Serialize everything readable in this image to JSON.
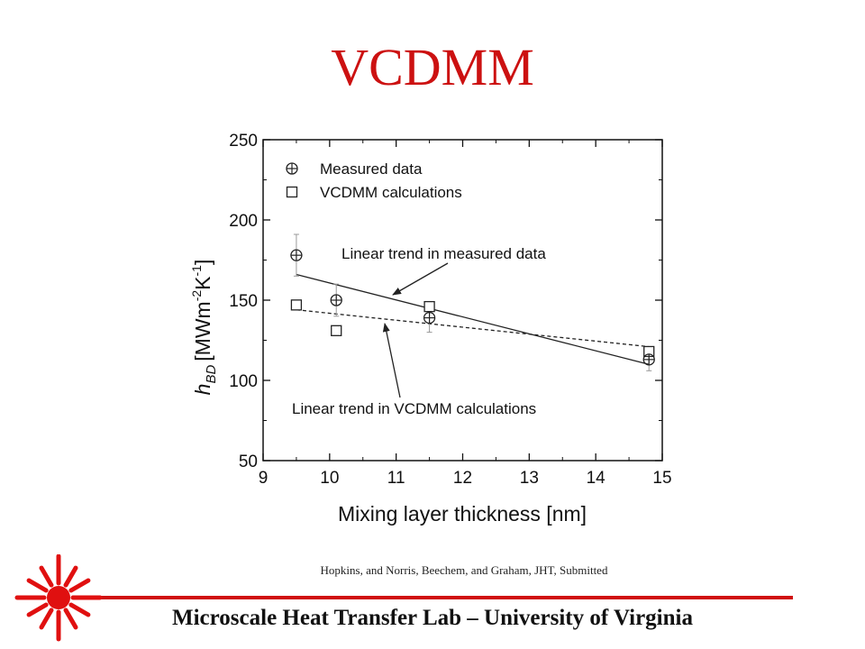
{
  "slide": {
    "title": "VCDMM",
    "citation": "Hopkins, and Norris, Beechem, and Graham, JHT,  Submitted",
    "footer": "Microscale Heat Transfer Lab – University of Virginia",
    "accent_color": "#cc1111",
    "logo": "starburst-laser-logo"
  },
  "chart_data": {
    "type": "scatter",
    "xlabel": "Mixing layer thickness [nm]",
    "ylabel": {
      "symbol": "h",
      "sub": "BD",
      "unit_main": "[MWm",
      "exp1": "-2",
      "unit_k": "K",
      "exp2": "-1",
      "close": "]"
    },
    "xlim": [
      9,
      15
    ],
    "ylim": [
      50,
      250
    ],
    "xticks": [
      "9",
      "10",
      "11",
      "12",
      "13",
      "14",
      "15"
    ],
    "yticks": [
      "50",
      "100",
      "150",
      "200",
      "250"
    ],
    "grid": false,
    "legend_position": "top-left",
    "series": [
      {
        "name": "Measured data",
        "marker": "circle-plus",
        "x": [
          9.5,
          10.1,
          11.5,
          14.8
        ],
        "y": [
          178,
          150,
          139,
          113
        ],
        "yerr": [
          13,
          10,
          9,
          7
        ]
      },
      {
        "name": "VCDMM calculations",
        "marker": "square",
        "x": [
          9.5,
          10.1,
          11.5,
          14.8
        ],
        "y": [
          147,
          131,
          146,
          118
        ]
      }
    ],
    "trendlines": [
      {
        "label": "Linear trend in measured data",
        "style": "solid",
        "x": [
          9.5,
          14.8
        ],
        "y": [
          166,
          110
        ]
      },
      {
        "label": "Linear trend in VCDMM calculations",
        "style": "dashed",
        "x": [
          9.5,
          14.8
        ],
        "y": [
          144,
          121
        ]
      }
    ]
  }
}
